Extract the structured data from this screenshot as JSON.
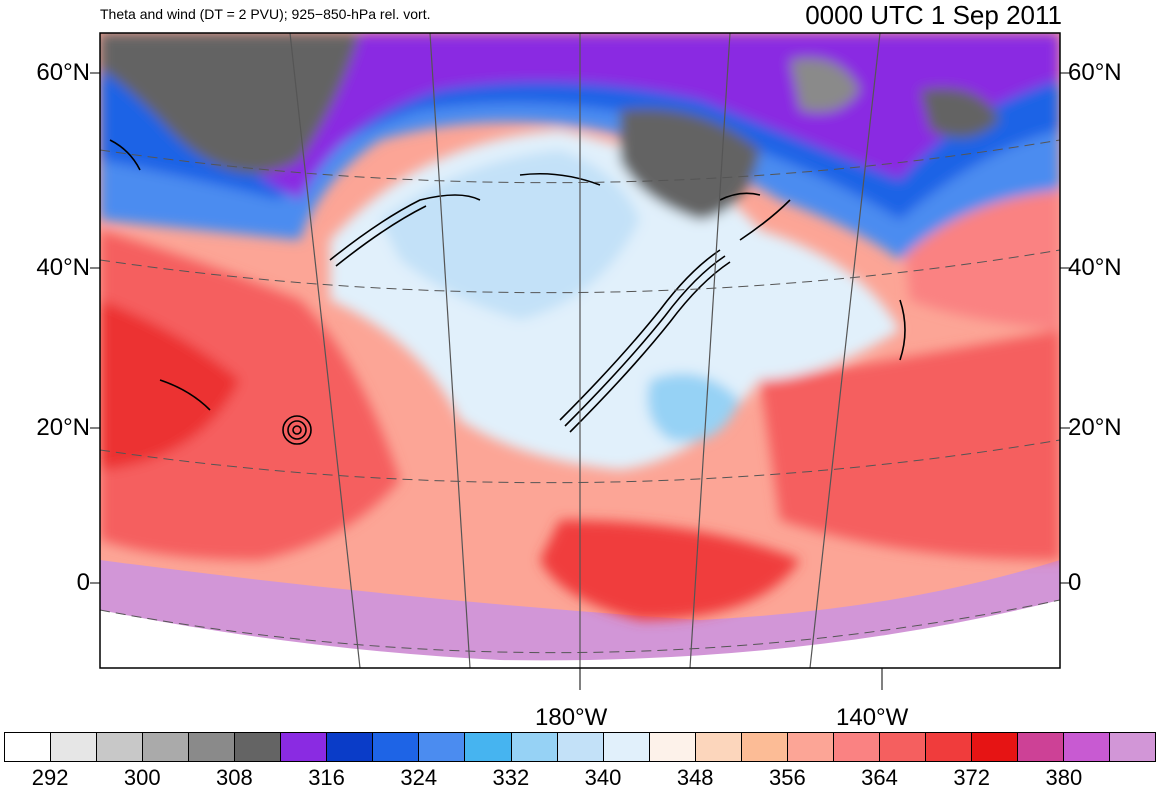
{
  "header": {
    "title_left": "Theta and wind (DT = 2 PVU); 925−850-hPa rel. vort.",
    "title_right": "0000 UTC 1 Sep 2011"
  },
  "map": {
    "lat_labels": [
      "60°N",
      "40°N",
      "20°N",
      "0"
    ],
    "lon_labels": [
      "180°W",
      "140°W"
    ]
  },
  "colorbar": {
    "colors": [
      "#ffffff",
      "#e6e6e6",
      "#c8c8c8",
      "#aaaaaa",
      "#8a8a8a",
      "#646464",
      "#8a2be2",
      "#0a3cc8",
      "#1e64e6",
      "#4b8cf0",
      "#46b4f0",
      "#96d2f5",
      "#c3e1f8",
      "#e1f0fb",
      "#fdf2ea",
      "#fcd6bc",
      "#fcbc96",
      "#fca596",
      "#fa8282",
      "#f55f5f",
      "#f03c3c",
      "#e61414",
      "#cd4196",
      "#c85ad2",
      "#d296d7"
    ],
    "labels": [
      "292",
      "300",
      "308",
      "316",
      "324",
      "332",
      "340",
      "348",
      "356",
      "364",
      "372",
      "380"
    ]
  }
}
